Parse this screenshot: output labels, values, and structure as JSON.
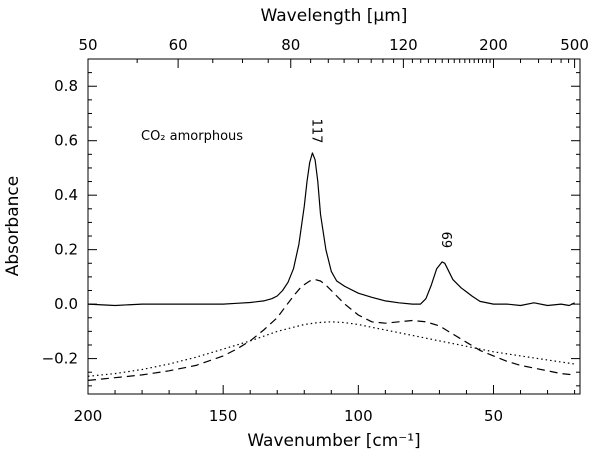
{
  "chart_data": {
    "type": "line",
    "title": "",
    "xlabel": "Wavenumber [cm⁻¹]",
    "ylabel": "Absorbance",
    "x2label": "Wavelength [μm]",
    "xlim": [
      200,
      18
    ],
    "ylim": [
      -0.33,
      0.9
    ],
    "x_ticks": [
      200,
      150,
      100,
      50
    ],
    "x_minor_step": 10,
    "y_ticks": [
      0.8,
      0.6,
      0.4,
      0.2,
      0.0,
      -0.2
    ],
    "y_tick_labels": [
      "0.8",
      "0.6",
      "0.4",
      "0.2",
      "0.0",
      "−0.2"
    ],
    "y_minor_step": 0.05,
    "top_ticks_um": [
      50,
      60,
      80,
      120,
      200,
      500
    ],
    "annotation": {
      "text": "CO₂ amorphous",
      "position": "upper-left"
    },
    "peak_labels": [
      {
        "text": "117",
        "x": 117,
        "y": 0.555
      },
      {
        "text": "69",
        "x": 69,
        "y": 0.155
      }
    ],
    "series": [
      {
        "name": "solid",
        "style": "solid",
        "x": [
          200,
          190,
          180,
          170,
          160,
          150,
          145,
          140,
          135,
          132,
          130,
          128,
          126,
          124,
          122,
          120,
          119,
          118,
          117,
          116,
          115,
          114,
          112,
          110,
          108,
          105,
          100,
          95,
          90,
          85,
          80,
          77,
          75,
          73,
          71,
          69,
          68,
          67,
          66,
          65,
          62,
          60,
          58,
          55,
          50,
          45,
          40,
          35,
          30,
          25,
          22,
          20
        ],
        "y": [
          0.0,
          -0.005,
          0.0,
          0.0,
          0.0,
          0.0,
          0.003,
          0.006,
          0.012,
          0.02,
          0.03,
          0.05,
          0.08,
          0.13,
          0.22,
          0.36,
          0.45,
          0.52,
          0.555,
          0.53,
          0.45,
          0.33,
          0.2,
          0.12,
          0.085,
          0.065,
          0.04,
          0.025,
          0.012,
          0.005,
          0.0,
          0.0,
          0.02,
          0.07,
          0.13,
          0.155,
          0.15,
          0.13,
          0.11,
          0.09,
          0.06,
          0.045,
          0.03,
          0.01,
          0.0,
          0.0,
          -0.005,
          0.005,
          -0.005,
          0.0,
          -0.005,
          0.005
        ]
      },
      {
        "name": "dashed",
        "style": "dashed",
        "x": [
          200,
          190,
          180,
          170,
          160,
          150,
          145,
          140,
          135,
          130,
          127,
          124,
          121,
          118,
          116,
          114,
          112,
          110,
          108,
          105,
          100,
          95,
          90,
          85,
          80,
          75,
          70,
          65,
          60,
          55,
          50,
          45,
          40,
          35,
          30,
          25,
          20
        ],
        "y": [
          -0.28,
          -0.27,
          -0.26,
          -0.245,
          -0.225,
          -0.19,
          -0.165,
          -0.135,
          -0.095,
          -0.05,
          -0.01,
          0.03,
          0.065,
          0.085,
          0.09,
          0.085,
          0.07,
          0.05,
          0.03,
          0.0,
          -0.04,
          -0.065,
          -0.07,
          -0.065,
          -0.06,
          -0.065,
          -0.08,
          -0.11,
          -0.14,
          -0.17,
          -0.19,
          -0.21,
          -0.225,
          -0.235,
          -0.245,
          -0.255,
          -0.26
        ]
      },
      {
        "name": "dotted",
        "style": "dotted",
        "x": [
          200,
          190,
          180,
          170,
          160,
          150,
          140,
          130,
          120,
          115,
          110,
          105,
          100,
          95,
          90,
          80,
          70,
          60,
          50,
          40,
          30,
          20
        ],
        "y": [
          -0.265,
          -0.255,
          -0.24,
          -0.22,
          -0.195,
          -0.165,
          -0.135,
          -0.1,
          -0.075,
          -0.068,
          -0.065,
          -0.068,
          -0.075,
          -0.085,
          -0.095,
          -0.115,
          -0.135,
          -0.155,
          -0.175,
          -0.19,
          -0.205,
          -0.22
        ]
      }
    ]
  }
}
